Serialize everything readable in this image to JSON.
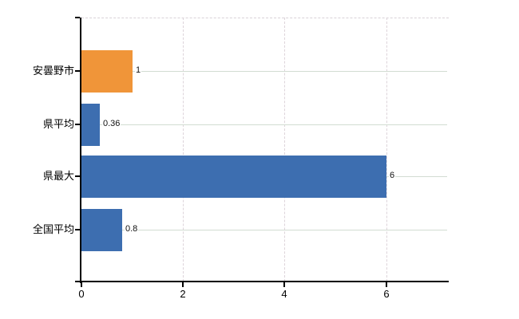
{
  "chart_data": {
    "type": "bar",
    "orientation": "horizontal",
    "title": "",
    "categories": [
      "安曇野市",
      "県平均",
      "県最大",
      "全国平均"
    ],
    "values": [
      1,
      0.36,
      6,
      0.8
    ],
    "data_labels": [
      "1",
      "0.36",
      "6",
      "0.8"
    ],
    "bar_colors": [
      "#f09539",
      "#3d6eb0",
      "#3d6eb0",
      "#3d6eb0"
    ],
    "highlight_color": "#f09539",
    "series_color": "#3d6eb0",
    "x_ticks": [
      0,
      2,
      4,
      6
    ],
    "x_tick_labels": [
      "0",
      "2",
      "4",
      "6"
    ],
    "xlim": [
      0,
      7.2
    ],
    "grid": true,
    "legend": "none",
    "ylabel": "",
    "xlabel": ""
  },
  "colors": {
    "axis": "#000000",
    "vertical_gridline": "#ddd4da",
    "horizontal_gridline": "#d2dcd2",
    "top_border": "#d9d2d8",
    "text": "#000000",
    "background": "#ffffff"
  }
}
